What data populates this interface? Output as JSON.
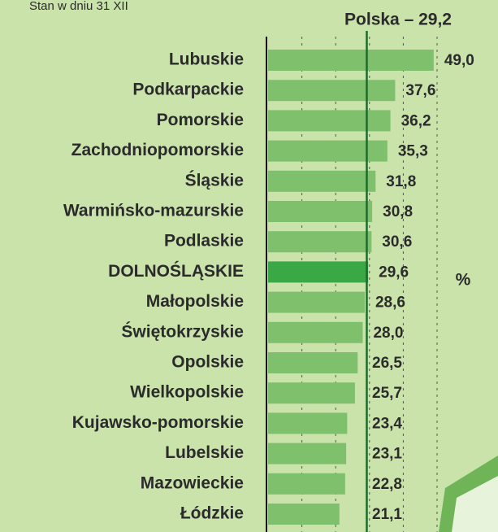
{
  "chart_data": {
    "type": "hbar",
    "subtitle": "Stan w dniu 31 XII",
    "unit_label": "%",
    "categories": [
      "Lubuskie",
      "Podkarpackie",
      "Pomorskie",
      "Zachodniopomorskie",
      "Śląskie",
      "Warmińsko-mazurskie",
      "Podlaskie",
      "DOLNOŚLĄSKIE",
      "Małopolskie",
      "Świętokrzyskie",
      "Opolskie",
      "Wielkopolskie",
      "Kujawsko-pomorskie",
      "Lubelskie",
      "Mazowieckie",
      "Łódzkie"
    ],
    "values": [
      49.0,
      37.6,
      36.2,
      35.3,
      31.8,
      30.8,
      30.6,
      29.6,
      28.6,
      28.0,
      26.5,
      25.7,
      23.4,
      23.1,
      22.8,
      21.1
    ],
    "value_labels": [
      "49,0",
      "37,6",
      "36,2",
      "35,3",
      "31,8",
      "30,8",
      "30,6",
      "29,6",
      "28,6",
      "28,0",
      "26,5",
      "25,7",
      "23,4",
      "23,1",
      "22,8",
      "21,1"
    ],
    "bar_colors": [
      "#7fc06c",
      "#7fc06c",
      "#7fc06c",
      "#7fc06c",
      "#7fc06c",
      "#7fc06c",
      "#7fc06c",
      "#3aa845",
      "#7fc06c",
      "#7fc06c",
      "#7fc06c",
      "#7fc06c",
      "#7fc06c",
      "#7fc06c",
      "#7fc06c",
      "#7fc06c"
    ],
    "reference": {
      "label": "Polska – 29,2",
      "value": 29.2,
      "color": "#1f6b2a"
    },
    "xlim": [
      0,
      50
    ],
    "xticks": [
      10,
      20,
      30,
      40,
      50
    ],
    "grid": true
  }
}
